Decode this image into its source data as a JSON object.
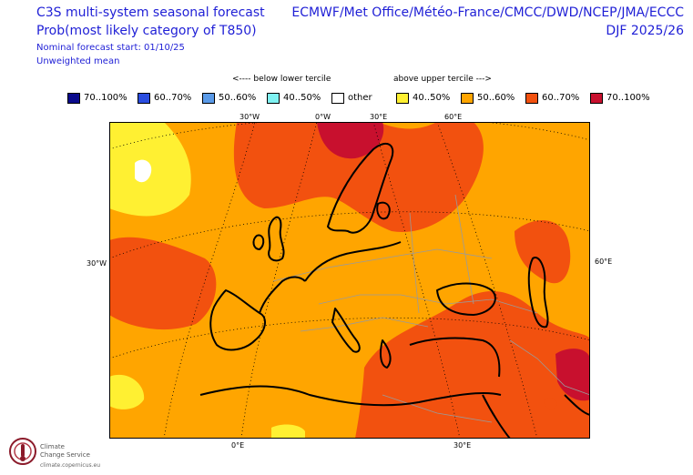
{
  "header": {
    "title_line1": "C3S multi-system seasonal forecast",
    "title_line2": "Prob(most likely category of T850)",
    "start": "Nominal forecast start: 01/10/25",
    "weighting": "Unweighted mean",
    "centres": "ECMWF/Met Office/Météo-France/CMCC/DWD/NCEP/JMA/ECCC",
    "season": "DJF 2025/26"
  },
  "legend": {
    "below_label": "<---- below lower tercile",
    "above_label": "above upper tercile --->",
    "items": [
      {
        "label": "70..100%",
        "color": "#0a0a8c"
      },
      {
        "label": "60..70%",
        "color": "#2a4de0"
      },
      {
        "label": "50..60%",
        "color": "#5a9ae8"
      },
      {
        "label": "40..50%",
        "color": "#7ff2f2"
      },
      {
        "label": "other",
        "color": "#ffffff"
      },
      {
        "label": "40..50%",
        "color": "#fff032"
      },
      {
        "label": "50..60%",
        "color": "#ffa500"
      },
      {
        "label": "60..70%",
        "color": "#f2510f"
      },
      {
        "label": "70..100%",
        "color": "#c8102e"
      }
    ]
  },
  "map": {
    "grid_labels": {
      "top": [
        "30°W",
        "0°W",
        "30°E",
        "60°E"
      ],
      "bottom": [
        "0°E",
        "30°E"
      ],
      "left": "30°W",
      "right": "60°E"
    }
  },
  "logo": {
    "line1": "Climate",
    "line2": "Change Service",
    "url": "climate.copernicus.eu"
  }
}
